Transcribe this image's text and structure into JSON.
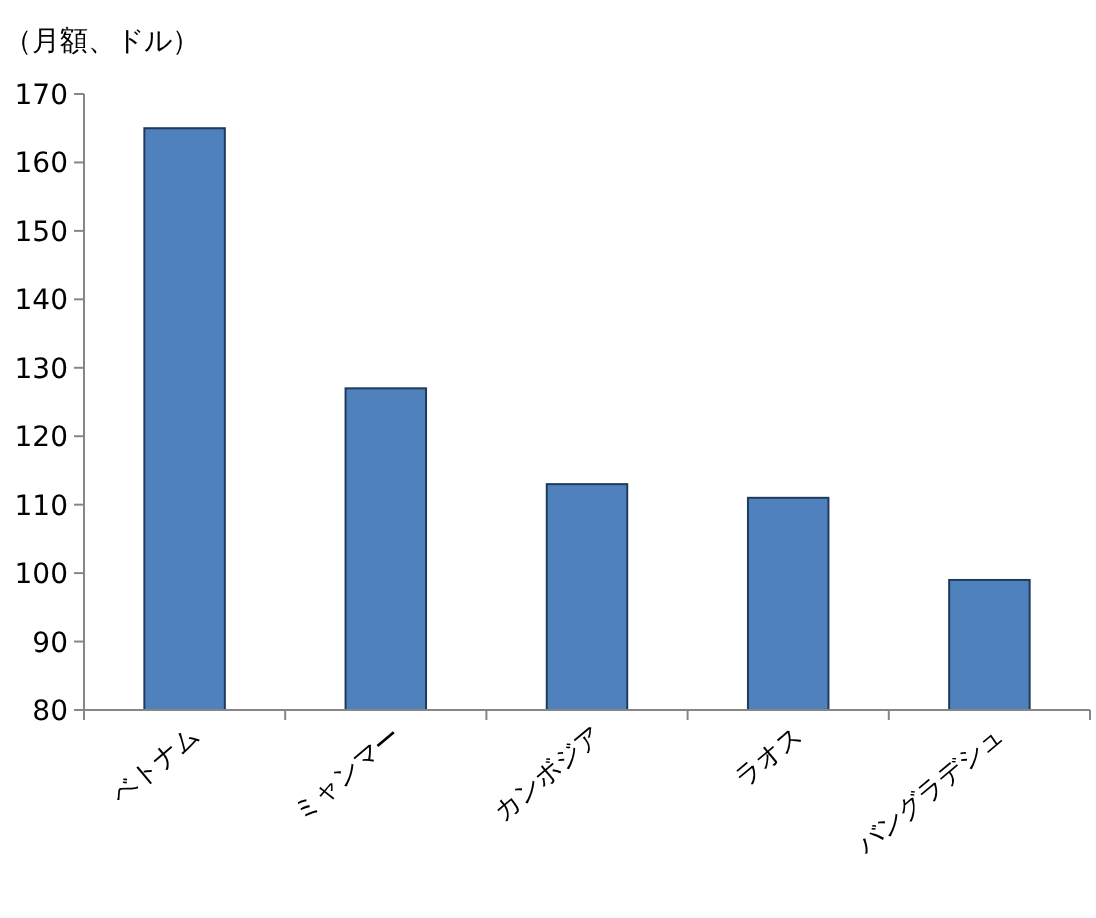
{
  "chart_data": {
    "type": "bar",
    "ylabel": "（月額、ドル）",
    "categories": [
      "ベトナム",
      "ミャンマー",
      "カンボジア",
      "ラオス",
      "バングラデシュ"
    ],
    "values": [
      165,
      127,
      113,
      111,
      99
    ],
    "color": "#4f81bd",
    "ylim": [
      80,
      170
    ],
    "yticks": [
      80,
      90,
      100,
      110,
      120,
      130,
      140,
      150,
      160,
      170
    ],
    "grid": false
  }
}
